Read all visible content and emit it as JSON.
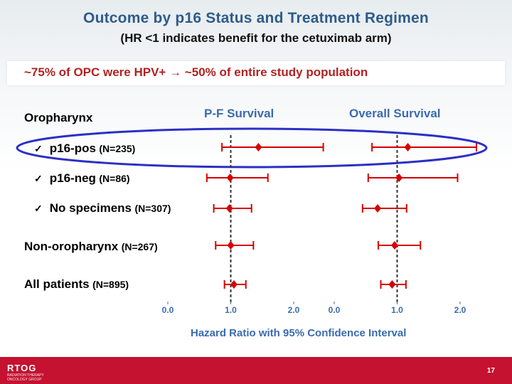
{
  "title": "Outcome by p16 Status and Treatment Regimen",
  "subtitle": "(HR <1 indicates benefit for the cetuximab arm)",
  "banner": "~75% of OPC were HPV+ → ~50% of entire study population",
  "section_header": "Oropharynx",
  "footer": {
    "logo": "RTOG",
    "logo_sub_1": "RADIATION THERAPY",
    "logo_sub_2": "ONCOLOGY GROUP",
    "page": "17"
  },
  "rows": [
    {
      "check": "✓",
      "label": "p16-pos",
      "n": "(N=235)"
    },
    {
      "check": "✓",
      "label": "p16-neg",
      "n": "(N=86)"
    },
    {
      "check": "✓",
      "label": "No specimens",
      "n": "(N=307)"
    },
    {
      "check": "",
      "label": "Non-oropharynx",
      "n": "(N=267)"
    },
    {
      "check": "",
      "label": "All patients",
      "n": "(N=895)"
    }
  ],
  "highlight_color": "#2b2fc4",
  "chart_data": [
    {
      "type": "forest",
      "title": "P-F Survival",
      "xlabel": "Hazard Ratio with 95% Confidence Interval",
      "xlim": [
        0.0,
        2.5
      ],
      "ticks": [
        0.0,
        1.0,
        2.0
      ],
      "tick_labels": [
        "0.0",
        "1.0",
        "2.0"
      ],
      "reference_line": 1.0,
      "categories": [
        "p16-pos",
        "p16-neg",
        "No specimens",
        "Non-oropharynx",
        "All patients"
      ],
      "estimates": [
        1.44,
        0.99,
        0.98,
        1.0,
        1.05
      ],
      "lower": [
        0.86,
        0.62,
        0.73,
        0.76,
        0.9
      ],
      "upper": [
        2.47,
        1.59,
        1.33,
        1.36,
        1.24
      ],
      "color": "#d60000"
    },
    {
      "type": "forest",
      "title": "Overall Survival",
      "xlabel": "Hazard Ratio with 95% Confidence Interval",
      "xlim": [
        0.0,
        2.5
      ],
      "ticks": [
        0.0,
        1.0,
        2.0
      ],
      "tick_labels": [
        "0.0",
        "1.0",
        "2.0"
      ],
      "reference_line": 1.0,
      "categories": [
        "p16-pos",
        "p16-neg",
        "No specimens",
        "Non-oropharynx",
        "All patients"
      ],
      "estimates": [
        1.17,
        1.03,
        0.69,
        0.96,
        0.92
      ],
      "lower": [
        0.6,
        0.54,
        0.45,
        0.7,
        0.74
      ],
      "upper": [
        2.26,
        1.96,
        1.15,
        1.37,
        1.14
      ],
      "color": "#d60000"
    }
  ]
}
